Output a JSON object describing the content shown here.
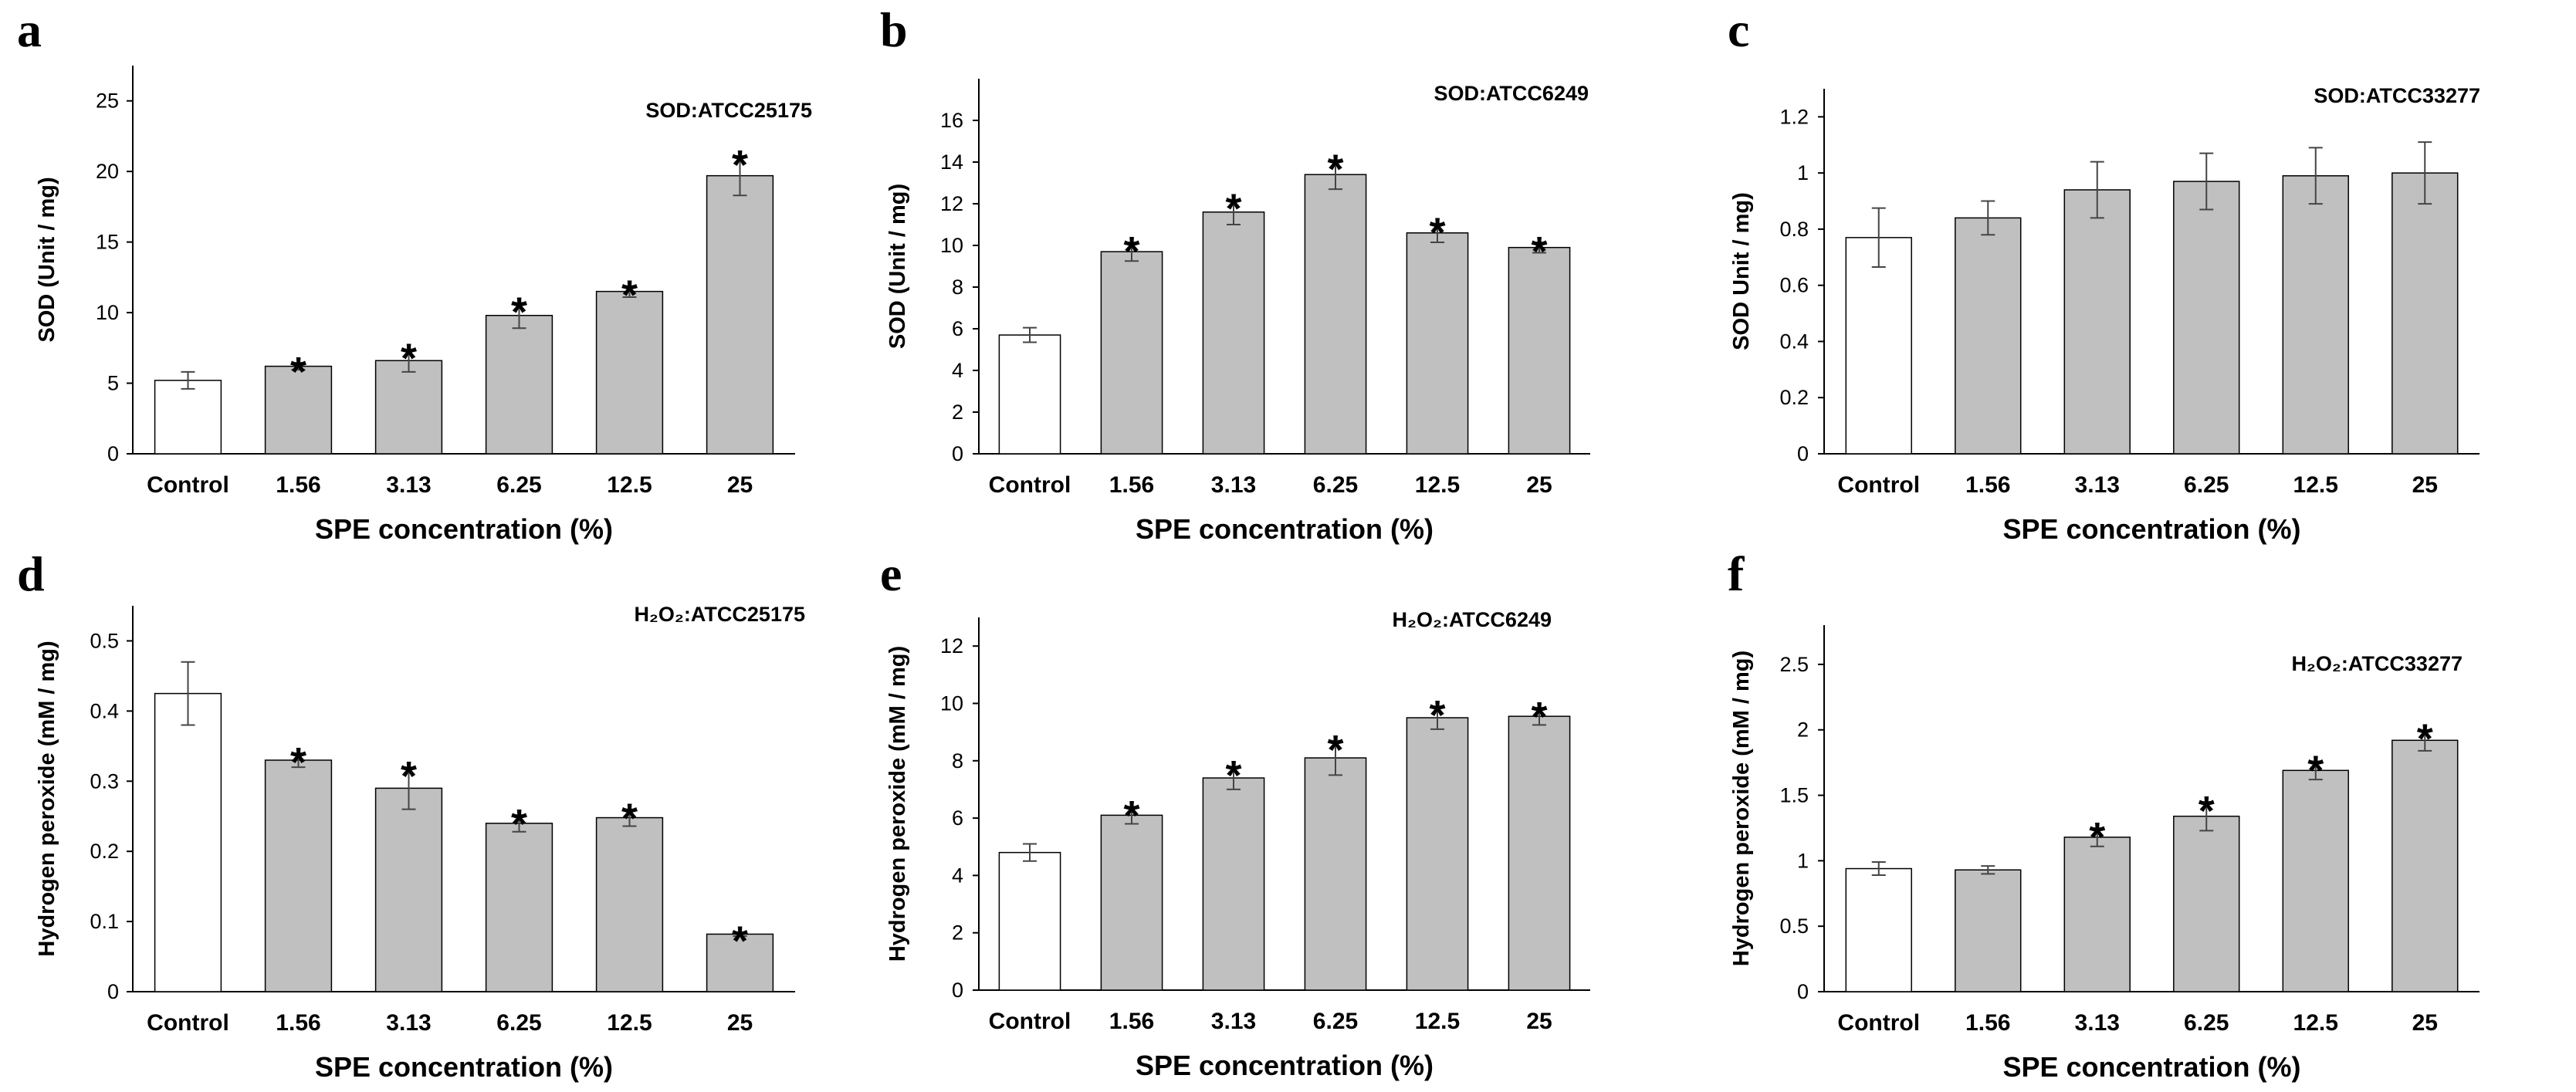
{
  "chart_data": [
    {
      "type": "bar",
      "panel": "a",
      "title": "SOD:ATCC25175",
      "xlabel": "SPE concentration (%)",
      "ylabel": "SOD (Unit / mg)",
      "categories": [
        "Control",
        "1.56",
        "3.13",
        "6.25",
        "12.5",
        "25"
      ],
      "values": [
        5.2,
        6.2,
        6.6,
        9.8,
        11.5,
        19.7
      ],
      "errors": [
        0.6,
        0.25,
        0.8,
        0.9,
        0.4,
        1.4
      ],
      "significant": [
        false,
        true,
        true,
        true,
        true,
        true
      ],
      "ylim": [
        0,
        27.5
      ],
      "yticks": [
        0,
        5,
        10,
        15,
        20,
        25
      ],
      "ytick_labels": [
        "0",
        "5",
        "10",
        "15",
        "20",
        "25"
      ],
      "control_color": "#ffffff",
      "bar_color": "#c0c0c0",
      "grid": false
    },
    {
      "type": "bar",
      "panel": "b",
      "title": "SOD:ATCC6249",
      "xlabel": "SPE concentration (%)",
      "ylabel": "SOD (Unit / mg)",
      "categories": [
        "Control",
        "1.56",
        "3.13",
        "6.25",
        "12.5",
        "25"
      ],
      "values": [
        5.7,
        9.7,
        11.6,
        13.4,
        10.6,
        9.9
      ],
      "errors": [
        0.35,
        0.45,
        0.6,
        0.7,
        0.45,
        0.25
      ],
      "significant": [
        false,
        true,
        true,
        true,
        true,
        true
      ],
      "ylim": [
        0,
        18
      ],
      "yticks": [
        0,
        2,
        4,
        6,
        8,
        10,
        12,
        14,
        16
      ],
      "ytick_labels": [
        "0",
        "2",
        "4",
        "6",
        "8",
        "10",
        "12",
        "14",
        "16"
      ],
      "control_color": "#ffffff",
      "bar_color": "#c0c0c0",
      "grid": false
    },
    {
      "type": "bar",
      "panel": "c",
      "title": "SOD:ATCC33277",
      "xlabel": "SPE concentration (%)",
      "ylabel": "SOD Unit / mg)",
      "categories": [
        "Control",
        "1.56",
        "3.13",
        "6.25",
        "12.5",
        "25"
      ],
      "values": [
        0.77,
        0.84,
        0.94,
        0.97,
        0.99,
        1.0
      ],
      "errors": [
        0.105,
        0.06,
        0.1,
        0.1,
        0.1,
        0.11
      ],
      "significant": [
        false,
        false,
        false,
        false,
        false,
        false
      ],
      "ylim": [
        0,
        1.3
      ],
      "yticks": [
        0,
        0.2,
        0.4,
        0.6,
        0.8,
        1.0,
        1.2
      ],
      "ytick_labels": [
        "0",
        "0.2",
        "0.4",
        "0.6",
        "0.8",
        "1",
        "1.2"
      ],
      "control_color": "#ffffff",
      "bar_color": "#c0c0c0",
      "grid": false
    },
    {
      "type": "bar",
      "panel": "d",
      "title": "H₂O₂:ATCC25175",
      "xlabel": "SPE concentration (%)",
      "ylabel": "Hydrogen peroxide (mM / mg)",
      "categories": [
        "Control",
        "1.56",
        "3.13",
        "6.25",
        "12.5",
        "25"
      ],
      "values": [
        0.425,
        0.33,
        0.29,
        0.24,
        0.248,
        0.082
      ],
      "errors": [
        0.045,
        0.01,
        0.03,
        0.012,
        0.012,
        0.003
      ],
      "significant": [
        false,
        true,
        true,
        true,
        true,
        true
      ],
      "ylim": [
        0,
        0.55
      ],
      "yticks": [
        0,
        0.1,
        0.2,
        0.3,
        0.4,
        0.5
      ],
      "ytick_labels": [
        "0",
        "0.1",
        "0.2",
        "0.3",
        "0.4",
        "0.5"
      ],
      "control_color": "#ffffff",
      "bar_color": "#c0c0c0",
      "grid": false
    },
    {
      "type": "bar",
      "panel": "e",
      "title": "H₂O₂:ATCC6249",
      "xlabel": "SPE concentration (%)",
      "ylabel": "Hydrogen peroxide (mM / mg)",
      "categories": [
        "Control",
        "1.56",
        "3.13",
        "6.25",
        "12.5",
        "25"
      ],
      "values": [
        4.8,
        6.1,
        7.4,
        8.1,
        9.5,
        9.55
      ],
      "errors": [
        0.3,
        0.3,
        0.4,
        0.6,
        0.4,
        0.3
      ],
      "significant": [
        false,
        true,
        true,
        true,
        true,
        true
      ],
      "ylim": [
        0,
        13
      ],
      "yticks": [
        0,
        2,
        4,
        6,
        8,
        10,
        12
      ],
      "ytick_labels": [
        "0",
        "2",
        "4",
        "6",
        "8",
        "10",
        "12"
      ],
      "control_color": "#ffffff",
      "bar_color": "#c0c0c0",
      "grid": false
    },
    {
      "type": "bar",
      "panel": "f",
      "title": "H₂O₂:ATCC33277",
      "xlabel": "SPE concentration (%)",
      "ylabel": "Hydrogen peroxide (mM / mg)",
      "categories": [
        "Control",
        "1.56",
        "3.13",
        "6.25",
        "12.5",
        "25"
      ],
      "values": [
        0.94,
        0.93,
        1.18,
        1.34,
        1.69,
        1.92
      ],
      "errors": [
        0.05,
        0.03,
        0.07,
        0.11,
        0.07,
        0.08
      ],
      "significant": [
        false,
        false,
        true,
        true,
        true,
        true
      ],
      "ylim": [
        0,
        2.8
      ],
      "yticks": [
        0,
        0.5,
        1.0,
        1.5,
        2.0,
        2.5
      ],
      "ytick_labels": [
        "0",
        "0.5",
        "1",
        "1.5",
        "2",
        "2.5"
      ],
      "control_color": "#ffffff",
      "bar_color": "#c0c0c0",
      "grid": false
    }
  ]
}
